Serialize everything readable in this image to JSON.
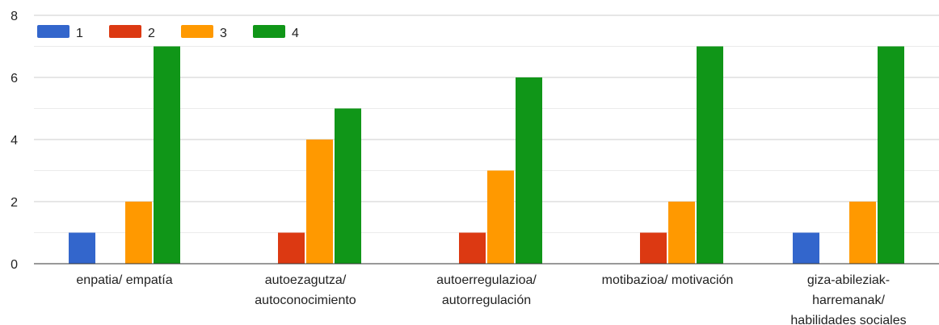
{
  "chart_data": {
    "type": "bar",
    "title": "",
    "xlabel": "",
    "ylabel": "",
    "ylim": [
      0,
      8
    ],
    "yticks": [
      0,
      2,
      4,
      6,
      8
    ],
    "grid": true,
    "legend_position": "top-left",
    "categories": [
      [
        "enpatia/ empatía"
      ],
      [
        "autoezagutza/",
        "autoconocimiento"
      ],
      [
        "autoerregulazioa/",
        "autorregulación"
      ],
      [
        "motibazioa/ motivación"
      ],
      [
        "giza-abileziak-",
        "harremanak/",
        "habilidades sociales"
      ]
    ],
    "series": [
      {
        "name": "1",
        "color": "#3366cc",
        "values": [
          1,
          0,
          0,
          0,
          1
        ]
      },
      {
        "name": "2",
        "color": "#dc3912",
        "values": [
          0,
          1,
          1,
          1,
          0
        ]
      },
      {
        "name": "3",
        "color": "#ff9900",
        "values": [
          2,
          4,
          3,
          2,
          2
        ]
      },
      {
        "name": "4",
        "color": "#109618",
        "values": [
          7,
          5,
          6,
          7,
          7
        ]
      }
    ]
  }
}
